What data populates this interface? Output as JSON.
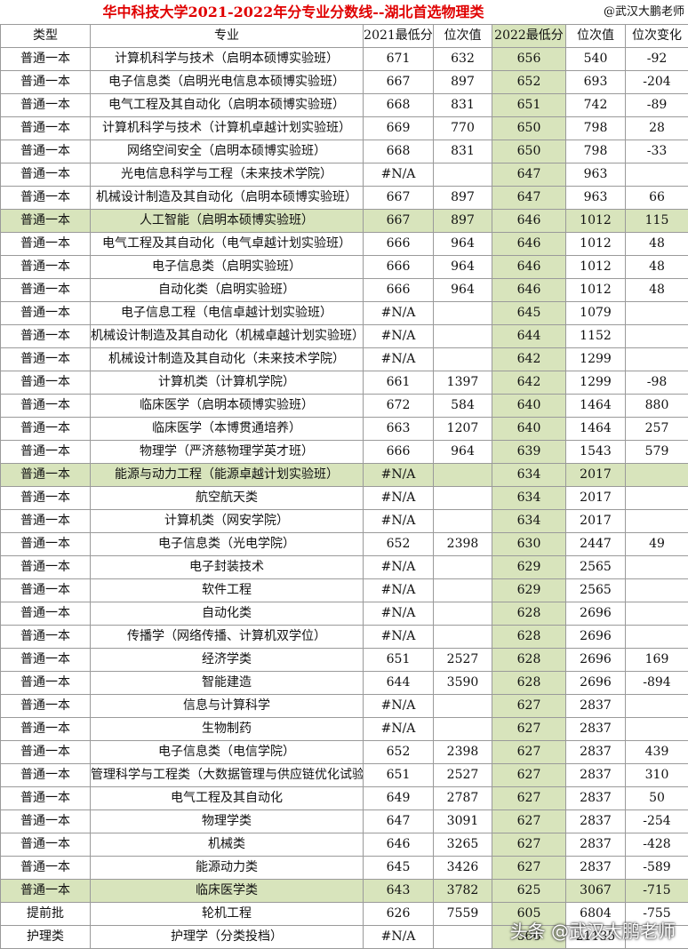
{
  "header": {
    "title": "华中科技大学2021-2022年分专业分数线--湖北首选物理类",
    "author": "@武汉大鹏老师"
  },
  "table": {
    "columns": [
      "类型",
      "专业",
      "2021最低分",
      "位次值",
      "2022最低分",
      "位次值",
      "位次变化"
    ],
    "highlighted_rows": [
      7,
      18,
      36
    ],
    "rows": [
      [
        "普通一本",
        "计算机科学与技术（启明本硕博实验班）",
        671,
        632,
        656,
        540,
        -92
      ],
      [
        "普通一本",
        "电子信息类（启明光电信息本硕博实验班）",
        667,
        897,
        652,
        693,
        -204
      ],
      [
        "普通一本",
        "电气工程及其自动化（启明本硕博实验班）",
        668,
        831,
        651,
        742,
        -89
      ],
      [
        "普通一本",
        "计算机科学与技术（计算机卓越计划实验班）",
        669,
        770,
        650,
        798,
        28
      ],
      [
        "普通一本",
        "网络空间安全（启明本硕博实验班）",
        668,
        831,
        650,
        798,
        -33
      ],
      [
        "普通一本",
        "光电信息科学与工程（未来技术学院）",
        "#N/A",
        null,
        647,
        963,
        null
      ],
      [
        "普通一本",
        "机械设计制造及其自动化（启明本硕博实验班）",
        667,
        897,
        647,
        963,
        66
      ],
      [
        "普通一本",
        "人工智能（启明本硕博实验班）",
        667,
        897,
        646,
        1012,
        115
      ],
      [
        "普通一本",
        "电气工程及其自动化（电气卓越计划实验班）",
        666,
        964,
        646,
        1012,
        48
      ],
      [
        "普通一本",
        "电子信息类（启明实验班）",
        666,
        964,
        646,
        1012,
        48
      ],
      [
        "普通一本",
        "自动化类（启明实验班）",
        666,
        964,
        646,
        1012,
        48
      ],
      [
        "普通一本",
        "电子信息工程（电信卓越计划实验班）",
        "#N/A",
        null,
        645,
        1079,
        null
      ],
      [
        "普通一本",
        "机械设计制造及其自动化（机械卓越计划实验班）",
        "#N/A",
        null,
        644,
        1152,
        null
      ],
      [
        "普通一本",
        "机械设计制造及其自动化（未来技术学院）",
        "#N/A",
        null,
        642,
        1299,
        null
      ],
      [
        "普通一本",
        "计算机类（计算机学院）",
        661,
        1397,
        642,
        1299,
        -98
      ],
      [
        "普通一本",
        "临床医学（启明本硕博实验班）",
        672,
        584,
        640,
        1464,
        880
      ],
      [
        "普通一本",
        "临床医学（本博贯通培养）",
        663,
        1207,
        640,
        1464,
        257
      ],
      [
        "普通一本",
        "物理学（严济慈物理学英才班）",
        666,
        964,
        639,
        1543,
        579
      ],
      [
        "普通一本",
        "能源与动力工程（能源卓越计划实验班）",
        "#N/A",
        null,
        634,
        2017,
        null
      ],
      [
        "普通一本",
        "航空航天类",
        "#N/A",
        null,
        634,
        2017,
        null
      ],
      [
        "普通一本",
        "计算机类（网安学院）",
        "#N/A",
        null,
        634,
        2017,
        null
      ],
      [
        "普通一本",
        "电子信息类（光电学院）",
        652,
        2398,
        630,
        2447,
        49
      ],
      [
        "普通一本",
        "电子封装技术",
        "#N/A",
        null,
        629,
        2565,
        null
      ],
      [
        "普通一本",
        "软件工程",
        "#N/A",
        null,
        629,
        2565,
        null
      ],
      [
        "普通一本",
        "自动化类",
        "#N/A",
        null,
        628,
        2696,
        null
      ],
      [
        "普通一本",
        "传播学（网络传播、计算机双学位）",
        "#N/A",
        null,
        628,
        2696,
        null
      ],
      [
        "普通一本",
        "经济学类",
        651,
        2527,
        628,
        2696,
        169
      ],
      [
        "普通一本",
        "智能建造",
        644,
        3590,
        628,
        2696,
        -894
      ],
      [
        "普通一本",
        "信息与计算科学",
        "#N/A",
        null,
        627,
        2837,
        null
      ],
      [
        "普通一本",
        "生物制药",
        "#N/A",
        null,
        627,
        2837,
        null
      ],
      [
        "普通一本",
        "电子信息类（电信学院）",
        652,
        2398,
        627,
        2837,
        439
      ],
      [
        "普通一本",
        "管理科学与工程类（大数据管理与供应链优化试验班）",
        651,
        2527,
        627,
        2837,
        310
      ],
      [
        "普通一本",
        "电气工程及其自动化",
        649,
        2787,
        627,
        2837,
        50
      ],
      [
        "普通一本",
        "物理学类",
        647,
        3091,
        627,
        2837,
        -254
      ],
      [
        "普通一本",
        "机械类",
        646,
        3265,
        627,
        2837,
        -428
      ],
      [
        "普通一本",
        "能源动力类",
        645,
        3426,
        627,
        2837,
        -589
      ],
      [
        "普通一本",
        "临床医学类",
        643,
        3782,
        625,
        3067,
        -715
      ],
      [
        "提前批",
        "轮机工程",
        626,
        7559,
        605,
        6804,
        -755
      ],
      [
        "护理类",
        "护理学（分类投档）",
        "#N/A",
        null,
        566,
        21135,
        null
      ]
    ]
  },
  "watermark": "头条 @武汉大鹏老师"
}
